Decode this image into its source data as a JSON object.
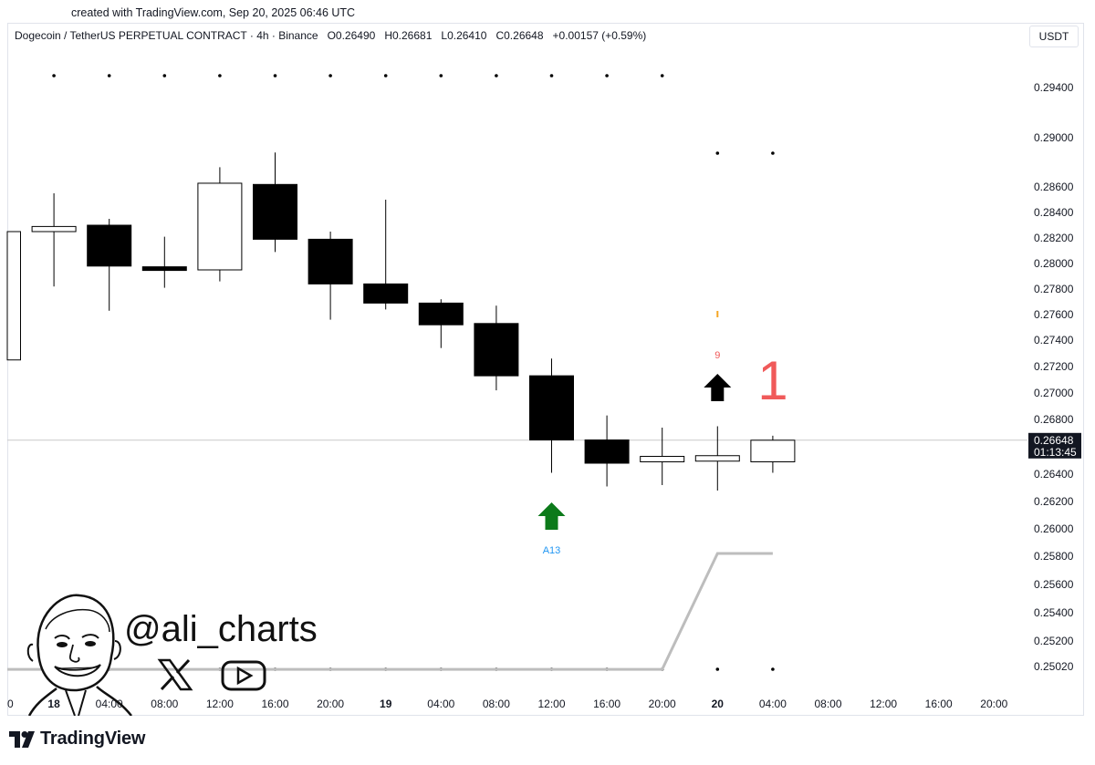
{
  "created_text": "created with TradingView.com, Sep 20, 2025 06:46 UTC",
  "header": {
    "symbol": "Dogecoin / TetherUS PERPETUAL CONTRACT · 4h · Binance",
    "open": "O0.26490",
    "high": "H0.26681",
    "low": "L0.26410",
    "close": "C0.26648",
    "change": "+0.00157 (+0.59%)"
  },
  "currency_button": "USDT",
  "branding": {
    "handle": "@ali_charts",
    "logo_text": "TradingView"
  },
  "colors": {
    "bear_body": "#000000",
    "bull_body": "#ffffff",
    "wick": "#000000",
    "grid_line": "#c9c9c9",
    "stop_line": "#bdbdbd",
    "arrow_up_green": "#0c7a1a",
    "arrow_up_black": "#000000",
    "label_blue": "#2196f3",
    "count_red": "#f05a5a",
    "price_label_bg": "#131722"
  },
  "chart_data": {
    "type": "candlestick",
    "timeframe": "4h",
    "y_axis": {
      "ticks": [
        "0.29400",
        "0.29000",
        "0.28600",
        "0.28400",
        "0.28200",
        "0.28000",
        "0.27800",
        "0.27600",
        "0.27400",
        "0.27200",
        "0.27000",
        "0.26800",
        "0.26400",
        "0.26200",
        "0.26000",
        "0.25800",
        "0.25600",
        "0.25400",
        "0.25200",
        "0.25020"
      ],
      "current_price": "0.26648",
      "countdown": "01:13:45"
    },
    "x_axis": {
      "ticks": [
        {
          "label": "0",
          "bold": false
        },
        {
          "label": "18",
          "bold": true
        },
        {
          "label": "04:00",
          "bold": false
        },
        {
          "label": "08:00",
          "bold": false
        },
        {
          "label": "12:00",
          "bold": false
        },
        {
          "label": "16:00",
          "bold": false
        },
        {
          "label": "20:00",
          "bold": false
        },
        {
          "label": "19",
          "bold": true
        },
        {
          "label": "04:00",
          "bold": false
        },
        {
          "label": "08:00",
          "bold": false
        },
        {
          "label": "12:00",
          "bold": false
        },
        {
          "label": "16:00",
          "bold": false
        },
        {
          "label": "20:00",
          "bold": false
        },
        {
          "label": "20",
          "bold": true
        },
        {
          "label": "04:00",
          "bold": false
        },
        {
          "label": "08:00",
          "bold": false
        },
        {
          "label": "12:00",
          "bold": false
        },
        {
          "label": "16:00",
          "bold": false
        },
        {
          "label": "20:00",
          "bold": false
        }
      ]
    },
    "candles": [
      {
        "time": "17 20:00",
        "open": 0.2725,
        "high": 0.2825,
        "low": 0.2725,
        "close": 0.2825
      },
      {
        "time": "18 00:00",
        "open": 0.2825,
        "high": 0.2855,
        "low": 0.2782,
        "close": 0.2829
      },
      {
        "time": "18 04:00",
        "open": 0.283,
        "high": 0.2835,
        "low": 0.2763,
        "close": 0.2798
      },
      {
        "time": "18 08:00",
        "open": 0.2797,
        "high": 0.2821,
        "low": 0.2781,
        "close": 0.2795
      },
      {
        "time": "18 12:00",
        "open": 0.2795,
        "high": 0.2876,
        "low": 0.2786,
        "close": 0.2863
      },
      {
        "time": "18 16:00",
        "open": 0.2862,
        "high": 0.2888,
        "low": 0.2809,
        "close": 0.2819
      },
      {
        "time": "18 20:00",
        "open": 0.2819,
        "high": 0.2825,
        "low": 0.2756,
        "close": 0.2784
      },
      {
        "time": "19 00:00",
        "open": 0.2784,
        "high": 0.285,
        "low": 0.2764,
        "close": 0.2769
      },
      {
        "time": "19 04:00",
        "open": 0.2769,
        "high": 0.2772,
        "low": 0.2734,
        "close": 0.2752
      },
      {
        "time": "19 08:00",
        "open": 0.2753,
        "high": 0.2767,
        "low": 0.2702,
        "close": 0.2713
      },
      {
        "time": "19 12:00",
        "open": 0.2713,
        "high": 0.2726,
        "low": 0.2641,
        "close": 0.2665
      },
      {
        "time": "19 16:00",
        "open": 0.2665,
        "high": 0.2683,
        "low": 0.2631,
        "close": 0.2648
      },
      {
        "time": "19 20:00",
        "open": 0.2649,
        "high": 0.2674,
        "low": 0.2632,
        "close": 0.2653
      },
      {
        "time": "20 00:00",
        "open": 0.2651,
        "high": 0.2675,
        "low": 0.2628,
        "close": 0.2652
      },
      {
        "time": "20 04:00",
        "open": 0.2649,
        "high": 0.26681,
        "low": 0.2641,
        "close": 0.26648
      }
    ],
    "stop_line": [
      {
        "time": "17 20:00",
        "value": 0.25
      },
      {
        "time": "19 20:00",
        "value": 0.25
      },
      {
        "time": "20 00:00",
        "value": 0.2582
      },
      {
        "time": "20 04:00",
        "value": 0.2582
      }
    ],
    "signals": [
      {
        "time": "19 12:00",
        "type": "arrow-up",
        "color": "green",
        "label": "A13"
      },
      {
        "time": "20 00:00",
        "type": "arrow-up",
        "color": "black",
        "label": "9"
      },
      {
        "time": "20 04:00",
        "type": "count",
        "label": "1"
      }
    ]
  }
}
